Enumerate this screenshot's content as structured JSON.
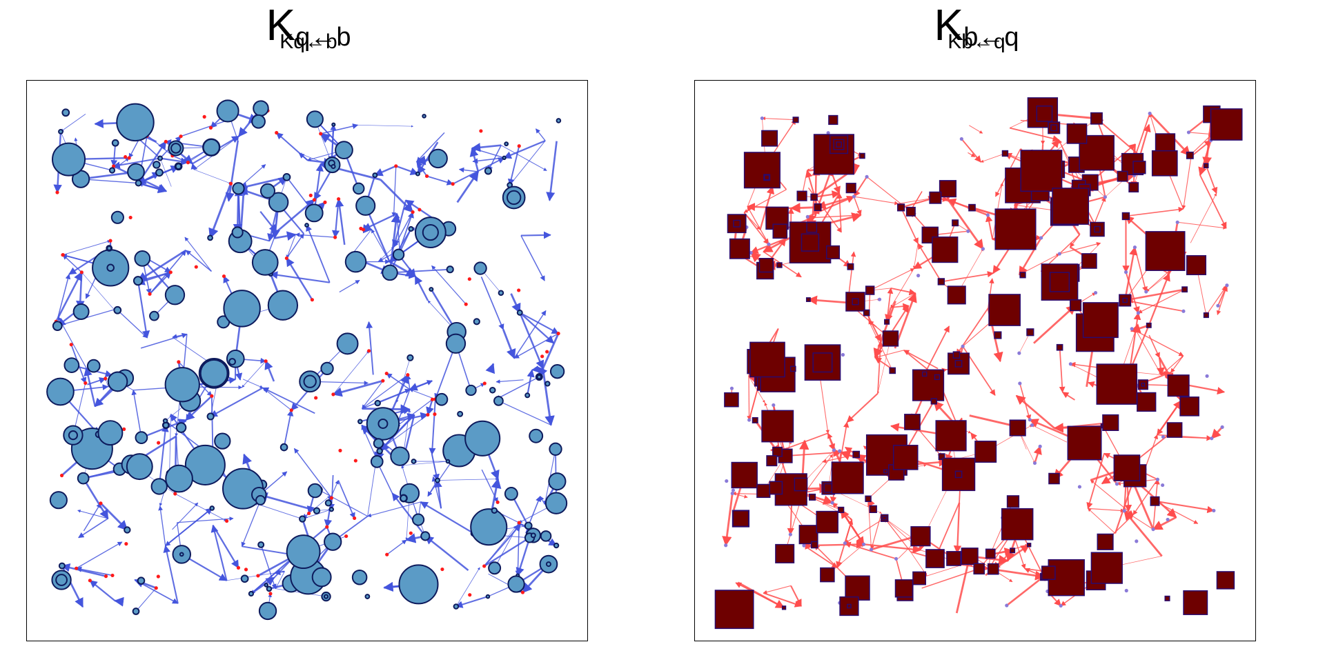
{
  "panels": [
    {
      "title_main": "K",
      "title_sub": "q←b",
      "title_echo": "Kq←b",
      "edge_color": "#4455dd",
      "node_fill": "#5b9bc6",
      "node_stroke": "#0d1a5c",
      "anchor_color": "#ff1a1a",
      "marker_shape": "circle",
      "seed": 17
    },
    {
      "title_main": "K",
      "title_sub": "b←q",
      "title_echo": "Kb←q",
      "edge_color": "#ff4d4d",
      "node_fill": "#6e0000",
      "node_stroke": "#2a0a6e",
      "anchor_color": "#8a7ad8",
      "marker_shape": "square",
      "seed": 53
    }
  ]
}
